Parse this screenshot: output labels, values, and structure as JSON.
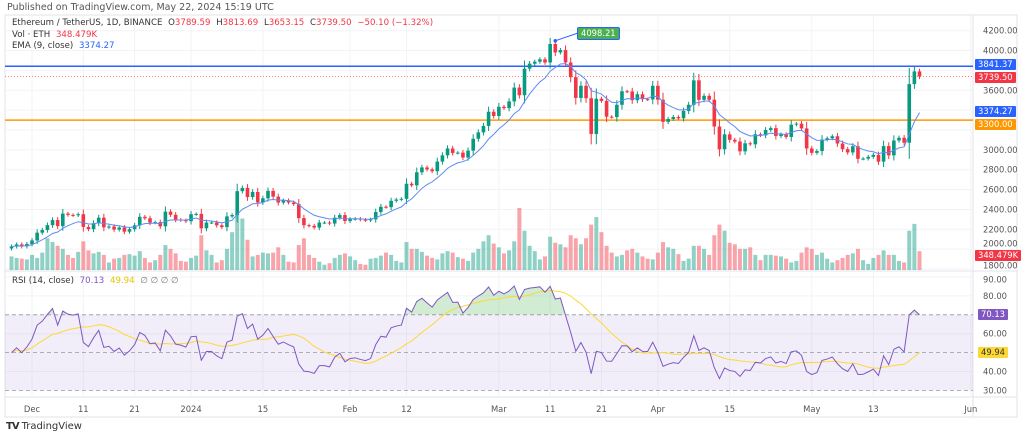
{
  "published": "Published on TradingView.com, May 22, 2024 15:19 UTC",
  "legend": {
    "symbol": "Ethereum / TetherUS, 1D, BINANCE",
    "open_label": "O",
    "open": "3789.59",
    "high_label": "H",
    "high": "3813.69",
    "low_label": "L",
    "low": "3653.15",
    "close_label": "C",
    "close": "3739.50",
    "change": "−50.10 (−1.32%)",
    "vol_label": "Vol · ETH",
    "vol": "348.479K",
    "ema_label": "EMA (9, close)",
    "ema": "3374.27",
    "rsi_label": "RSI (14, close)",
    "rsi": "70.13",
    "rsi_ma": "49.94",
    "rsi_extra": "∅ ∅ ∅ ∅"
  },
  "price_tags": {
    "resistance": "3841.37",
    "last": "3739.50",
    "ema": "3374.27",
    "support": "3300.00",
    "volume": "348.479K",
    "rsi": "70.13",
    "rsi_ma": "49.94",
    "peak": "4098.21"
  },
  "brand": "TradingView",
  "colors": {
    "up": "#089981",
    "down": "#f23645",
    "ema": "#5b8cf5",
    "resistance": "#2962ff",
    "support": "#ff9800",
    "rsi": "#7e57c2",
    "rsi_ma": "#fdd835",
    "peak": "#4caf50"
  },
  "chart_data": {
    "type": "candlestick",
    "title": "Ethereum / TetherUS, 1D, BINANCE",
    "price_axis": {
      "ticks": [
        "4200.00",
        "4000.00",
        "3600.00",
        "3000.00",
        "2800.00",
        "2600.00",
        "2400.00",
        "2200.00",
        "2000.00",
        "1800.00"
      ],
      "range": [
        1800,
        4200
      ]
    },
    "rsi_axis": {
      "ticks": [
        "90.00",
        "80.00",
        "60.00",
        "40.00",
        "30.00"
      ],
      "range": [
        30,
        90
      ],
      "bands": [
        70,
        50,
        30
      ]
    },
    "time_ticks": [
      {
        "label": "Dec",
        "date": "2023-12-01"
      },
      {
        "label": "11",
        "date": "2023-12-11"
      },
      {
        "label": "21",
        "date": "2023-12-21"
      },
      {
        "label": "2024",
        "date": "2024-01-01"
      },
      {
        "label": "15",
        "date": "2024-01-15"
      },
      {
        "label": "Feb",
        "date": "2024-02-01"
      },
      {
        "label": "12",
        "date": "2024-02-12"
      },
      {
        "label": "Mar",
        "date": "2024-03-01"
      },
      {
        "label": "11",
        "date": "2024-03-11"
      },
      {
        "label": "21",
        "date": "2024-03-21"
      },
      {
        "label": "Apr",
        "date": "2024-04-01"
      },
      {
        "label": "15",
        "date": "2024-04-15"
      },
      {
        "label": "May",
        "date": "2024-05-01"
      },
      {
        "label": "13",
        "date": "2024-05-13"
      },
      {
        "label": "Jun",
        "date": "2024-06-01"
      }
    ],
    "horizontal_lines": [
      {
        "value": 3841.37,
        "color": "#2962ff"
      },
      {
        "value": 3300,
        "color": "#ff9800"
      }
    ],
    "peak": {
      "date": "2024-03-12",
      "value": 4098.21
    },
    "ema_period": 9,
    "rsi_period": 14,
    "months": [
      {
        "month": "2023-11",
        "from_day": 27,
        "closes": [
          2027,
          2048,
          2028,
          2052
        ],
        "volumes_k": [
          280,
          260,
          250,
          240
        ]
      },
      {
        "month": "2023-12",
        "from_day": 1,
        "closes": [
          2088,
          2166,
          2193,
          2242,
          2293,
          2232,
          2358,
          2345,
          2341,
          2352,
          2224,
          2201,
          2261,
          2317,
          2220,
          2228,
          2197,
          2218,
          2176,
          2201,
          2240,
          2326,
          2311,
          2267,
          2272,
          2230,
          2378,
          2346,
          2298,
          2292,
          2281
        ],
        "volumes_k": [
          300,
          260,
          330,
          520,
          470,
          420,
          380,
          300,
          260,
          340,
          480,
          360,
          320,
          340,
          300,
          200,
          250,
          260,
          300,
          310,
          290,
          350,
          260,
          200,
          230,
          300,
          430,
          380,
          320,
          220,
          210
        ]
      },
      {
        "month": "2024-01",
        "from_day": 1,
        "closes": [
          2352,
          2355,
          2210,
          2268,
          2268,
          2240,
          2222,
          2330,
          2344,
          2584,
          2617,
          2525,
          2576,
          2470,
          2512,
          2587,
          2529,
          2469,
          2490,
          2470,
          2454,
          2313,
          2241,
          2235,
          2218,
          2268,
          2268,
          2258,
          2317,
          2343,
          2283
        ],
        "volumes_k": [
          260,
          290,
          560,
          360,
          300,
          200,
          230,
          380,
          600,
          850,
          780,
          500,
          280,
          300,
          330,
          320,
          330,
          400,
          300,
          210,
          200,
          430,
          520,
          300,
          260,
          210,
          170,
          190,
          260,
          300,
          320
        ]
      },
      {
        "month": "2024-02",
        "from_day": 1,
        "closes": [
          2303,
          2307,
          2297,
          2290,
          2300,
          2374,
          2427,
          2423,
          2487,
          2500,
          2507,
          2659,
          2643,
          2774,
          2823,
          2803,
          2785,
          2882,
          2945,
          3014,
          2969,
          2972,
          2923,
          2992,
          3112,
          3176,
          3241,
          3384,
          3341
        ],
        "volumes_k": [
          280,
          230,
          180,
          170,
          250,
          260,
          290,
          330,
          300,
          220,
          200,
          470,
          380,
          380,
          340,
          290,
          260,
          240,
          320,
          350,
          330,
          270,
          250,
          220,
          330,
          380,
          480,
          560,
          450
        ]
      },
      {
        "month": "2024-03",
        "from_day": 1,
        "closes": [
          3434,
          3420,
          3488,
          3627,
          3550,
          3818,
          3868,
          3888,
          3912,
          3880,
          4066,
          3981,
          4005,
          3880,
          3732,
          3523,
          3645,
          3520,
          3160,
          3515,
          3493,
          3334,
          3330,
          3454,
          3590,
          3588,
          3500,
          3560,
          3510,
          3508,
          3645
        ],
        "volumes_k": [
          400,
          320,
          360,
          480,
          920,
          620,
          420,
          350,
          240,
          280,
          540,
          460,
          440,
          400,
          560,
          520,
          440,
          520,
          700,
          800,
          600,
          420,
          330,
          280,
          300,
          360,
          380,
          330,
          280,
          250,
          240
        ]
      },
      {
        "month": "2024-04",
        "from_day": 1,
        "closes": [
          3505,
          3282,
          3311,
          3331,
          3318,
          3392,
          3454,
          3700,
          3504,
          3544,
          3505,
          3235,
          3006,
          3156,
          3101,
          3084,
          2985,
          3066,
          3056,
          3157,
          3146,
          3200,
          3219,
          3139,
          3156,
          3130,
          3254,
          3264,
          3216,
          3014
        ],
        "volumes_k": [
          330,
          470,
          400,
          380,
          310,
          220,
          250,
          420,
          420,
          380,
          300,
          560,
          700,
          620,
          460,
          440,
          380,
          380,
          400,
          300,
          230,
          300,
          300,
          290,
          280,
          250,
          200,
          220,
          330,
          400
        ]
      },
      {
        "month": "2024-05",
        "from_day": 1,
        "closes": [
          2970,
          2988,
          3104,
          3117,
          3137,
          3064,
          3007,
          2974,
          3036,
          2910,
          2912,
          2930,
          2950,
          2881,
          3038,
          2945,
          3094,
          3122,
          3072,
          3662,
          3790,
          3739.5
        ],
        "volumes_k": [
          380,
          300,
          330,
          250,
          200,
          230,
          260,
          300,
          320,
          380,
          230,
          180,
          260,
          300,
          360,
          300,
          300,
          220,
          200,
          620,
          710,
          348.479
        ]
      }
    ]
  }
}
